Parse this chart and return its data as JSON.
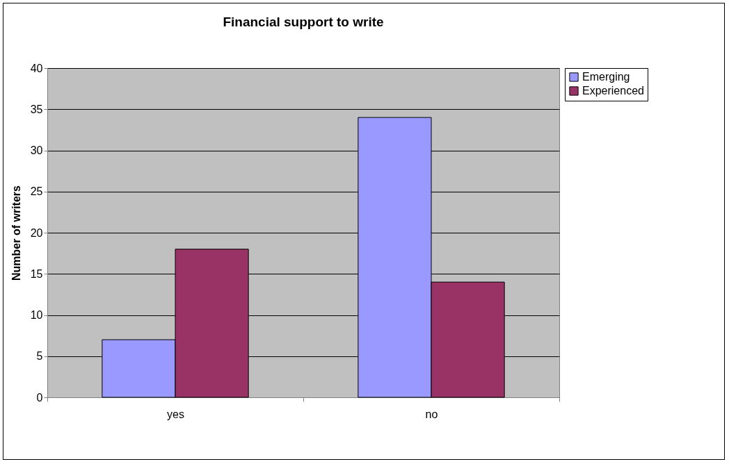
{
  "chart_data": {
    "type": "bar",
    "title": "Financial support to write",
    "ylabel": "Number of writers",
    "categories": [
      "yes",
      "no"
    ],
    "series": [
      {
        "name": "Emerging",
        "color": "#9999ff",
        "values": [
          7,
          34
        ]
      },
      {
        "name": "Experienced",
        "color": "#993366",
        "values": [
          18,
          14
        ]
      }
    ],
    "ylim": [
      0,
      40
    ],
    "yticks": [
      0,
      5,
      10,
      15,
      20,
      25,
      30,
      35,
      40
    ],
    "grid": "y",
    "legend": "right"
  }
}
